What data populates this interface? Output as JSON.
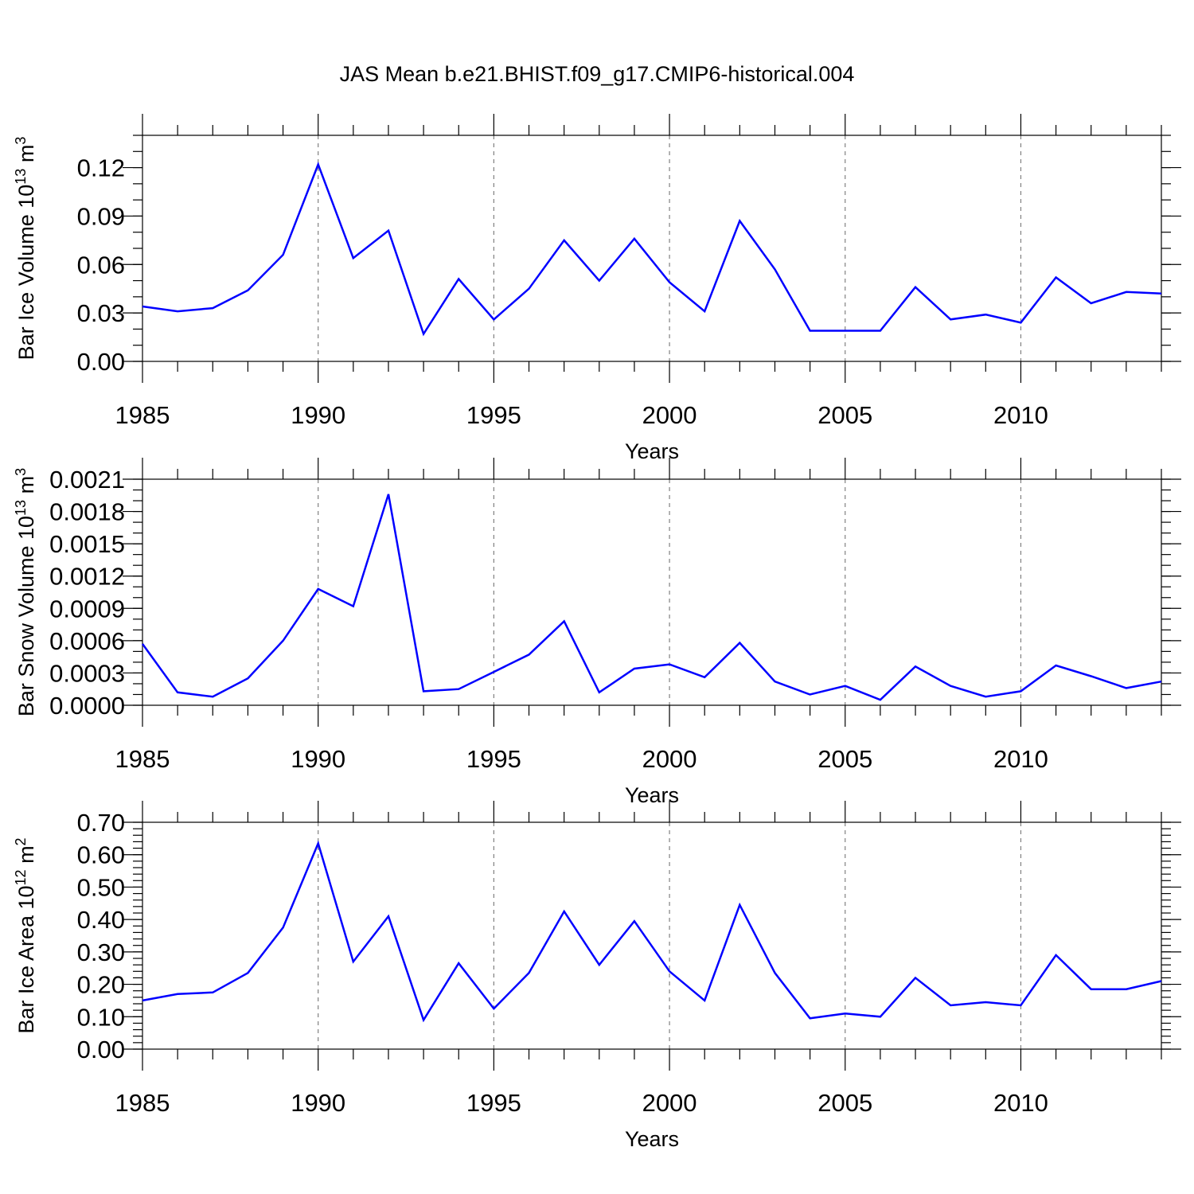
{
  "title": "JAS Mean b.e21.BHIST.f09_g17.CMIP6-historical.004",
  "colors": {
    "line": "#0000ff",
    "axis": "#000000",
    "grid": "#808080"
  },
  "chart_data": [
    {
      "type": "line",
      "ylabel": "Bar Ice Volume 10",
      "ylabel_sup": "13",
      "ylabel_unit": " m",
      "ylabel_unit_sup": "3",
      "xlabel": "Years",
      "xlim": [
        1985,
        2014
      ],
      "ylim": [
        0,
        0.14
      ],
      "yticks": [
        0,
        0.03,
        0.06,
        0.09,
        0.12
      ],
      "ytick_labels": [
        "0.00",
        "0.03",
        "0.06",
        "0.09",
        "0.12"
      ],
      "yminor": 0.01,
      "xticks": [
        1985,
        1990,
        1995,
        2000,
        2005,
        2010
      ],
      "xtick_labels": [
        "1985",
        "1990",
        "1995",
        "2000",
        "2005",
        "2010"
      ],
      "x": [
        1985,
        1986,
        1987,
        1988,
        1989,
        1990,
        1991,
        1992,
        1993,
        1994,
        1995,
        1996,
        1997,
        1998,
        1999,
        2000,
        2001,
        2002,
        2003,
        2004,
        2005,
        2006,
        2007,
        2008,
        2009,
        2010,
        2011,
        2012,
        2013,
        2014
      ],
      "values": [
        0.034,
        0.031,
        0.033,
        0.044,
        0.066,
        0.122,
        0.064,
        0.081,
        0.017,
        0.051,
        0.026,
        0.045,
        0.075,
        0.05,
        0.076,
        0.049,
        0.031,
        0.087,
        0.057,
        0.019,
        0.019,
        0.019,
        0.046,
        0.026,
        0.029,
        0.024,
        0.052,
        0.036,
        0.043,
        0.042
      ]
    },
    {
      "type": "line",
      "ylabel": "Bar Snow Volume 10",
      "ylabel_sup": "13",
      "ylabel_unit": " m",
      "ylabel_unit_sup": "3",
      "xlabel": "Years",
      "xlim": [
        1985,
        2014
      ],
      "ylim": [
        0,
        0.0021
      ],
      "yticks": [
        0,
        0.0003,
        0.0006,
        0.0009,
        0.0012,
        0.0015,
        0.0018,
        0.0021
      ],
      "ytick_labels": [
        "0.0000",
        "0.0003",
        "0.0006",
        "0.0009",
        "0.0012",
        "0.0015",
        "0.0018",
        "0.0021"
      ],
      "yminor": 0.0001,
      "xticks": [
        1985,
        1990,
        1995,
        2000,
        2005,
        2010
      ],
      "xtick_labels": [
        "1985",
        "1990",
        "1995",
        "2000",
        "2005",
        "2010"
      ],
      "x": [
        1985,
        1986,
        1987,
        1988,
        1989,
        1990,
        1991,
        1992,
        1993,
        1994,
        1995,
        1996,
        1997,
        1998,
        1999,
        2000,
        2001,
        2002,
        2003,
        2004,
        2005,
        2006,
        2007,
        2008,
        2009,
        2010,
        2011,
        2012,
        2013,
        2014
      ],
      "values": [
        0.00057,
        0.00012,
        8e-05,
        0.00025,
        0.0006,
        0.00108,
        0.00092,
        0.00196,
        0.00013,
        0.00015,
        0.00031,
        0.00047,
        0.00078,
        0.00012,
        0.00034,
        0.00038,
        0.00026,
        0.00058,
        0.00022,
        0.0001,
        0.00018,
        5e-05,
        0.00036,
        0.00018,
        8e-05,
        0.00013,
        0.00037,
        0.00027,
        0.00016,
        0.00022
      ]
    },
    {
      "type": "line",
      "ylabel": "Bar Ice Area 10",
      "ylabel_sup": "12",
      "ylabel_unit": " m",
      "ylabel_unit_sup": "2",
      "xlabel": "Years",
      "xlim": [
        1985,
        2014
      ],
      "ylim": [
        0,
        0.7
      ],
      "yticks": [
        0,
        0.1,
        0.2,
        0.3,
        0.4,
        0.5,
        0.6,
        0.7
      ],
      "ytick_labels": [
        "0.00",
        "0.10",
        "0.20",
        "0.30",
        "0.40",
        "0.50",
        "0.60",
        "0.70"
      ],
      "yminor": 0.02,
      "xticks": [
        1985,
        1990,
        1995,
        2000,
        2005,
        2010
      ],
      "xtick_labels": [
        "1985",
        "1990",
        "1995",
        "2000",
        "2005",
        "2010"
      ],
      "x": [
        1985,
        1986,
        1987,
        1988,
        1989,
        1990,
        1991,
        1992,
        1993,
        1994,
        1995,
        1996,
        1997,
        1998,
        1999,
        2000,
        2001,
        2002,
        2003,
        2004,
        2005,
        2006,
        2007,
        2008,
        2009,
        2010,
        2011,
        2012,
        2013,
        2014
      ],
      "values": [
        0.15,
        0.17,
        0.175,
        0.235,
        0.375,
        0.635,
        0.27,
        0.41,
        0.09,
        0.265,
        0.125,
        0.235,
        0.425,
        0.26,
        0.395,
        0.24,
        0.15,
        0.445,
        0.235,
        0.095,
        0.11,
        0.1,
        0.22,
        0.135,
        0.145,
        0.135,
        0.29,
        0.185,
        0.185,
        0.21
      ]
    }
  ]
}
